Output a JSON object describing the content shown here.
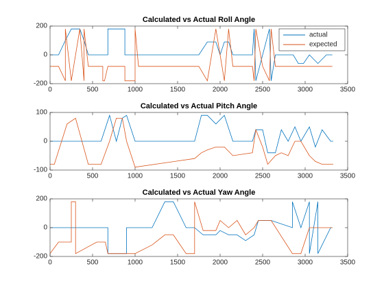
{
  "chart_data": [
    {
      "type": "line",
      "title": "Calculated vs Actual Roll Angle",
      "x": [
        0,
        100,
        180,
        180,
        250,
        350,
        400,
        400,
        450,
        620,
        620,
        640,
        680,
        680,
        880,
        880,
        1000,
        1000,
        1040,
        1750,
        1850,
        1950,
        2000,
        2050,
        2100,
        2150,
        2380,
        2400,
        2420,
        2500,
        2580,
        2600,
        2600,
        2650,
        2800,
        2860,
        2920,
        2980,
        3050,
        3150,
        3250,
        3320
      ],
      "series": [
        {
          "name": "actual",
          "color": "#0072bd",
          "values": [
            0,
            0,
            100,
            100,
            180,
            180,
            100,
            100,
            0,
            0,
            0,
            0,
            0,
            180,
            180,
            0,
            0,
            0,
            0,
            0,
            90,
            90,
            0,
            90,
            90,
            0,
            0,
            180,
            -180,
            0,
            180,
            -180,
            -180,
            0,
            0,
            0,
            -60,
            -60,
            0,
            -60,
            0,
            0
          ]
        },
        {
          "name": "expected",
          "color": "#d95319",
          "values": [
            -80,
            -80,
            -180,
            180,
            -180,
            180,
            -180,
            180,
            -80,
            -80,
            -180,
            -180,
            -80,
            -80,
            -80,
            -180,
            -180,
            180,
            -80,
            -80,
            -180,
            180,
            0,
            -180,
            180,
            -80,
            -80,
            -180,
            180,
            -80,
            -180,
            180,
            180,
            -80,
            -80,
            -80,
            -80,
            -80,
            -80,
            -80,
            -80,
            -80
          ]
        }
      ],
      "xlim": [
        0,
        3500
      ],
      "xticks": [
        0,
        500,
        1000,
        1500,
        2000,
        2500,
        3000,
        3500
      ],
      "ylim": [
        -200,
        200
      ],
      "yticks": [
        -200,
        0,
        200
      ],
      "legend": "upper right"
    },
    {
      "type": "line",
      "title": "Calculated vs Actual Pitch Angle",
      "x": [
        0,
        50,
        200,
        300,
        450,
        600,
        700,
        780,
        850,
        900,
        1000,
        1700,
        1780,
        1850,
        1950,
        2050,
        2150,
        2380,
        2420,
        2500,
        2560,
        2650,
        2720,
        2800,
        2880,
        2950,
        3050,
        3120,
        3200,
        3300,
        3330
      ],
      "series": [
        {
          "name": "actual",
          "color": "#0072bd",
          "values": [
            0,
            0,
            0,
            0,
            0,
            0,
            90,
            0,
            80,
            90,
            0,
            0,
            90,
            90,
            60,
            90,
            0,
            0,
            40,
            40,
            -40,
            -40,
            40,
            0,
            50,
            0,
            50,
            -20,
            40,
            0,
            0
          ]
        },
        {
          "name": "expected",
          "color": "#d95319",
          "values": [
            -80,
            -80,
            60,
            80,
            -80,
            -80,
            0,
            80,
            80,
            0,
            -90,
            -60,
            -40,
            -30,
            -20,
            -20,
            -50,
            -40,
            40,
            -20,
            -80,
            -50,
            -40,
            -50,
            0,
            0,
            -50,
            -70,
            -80,
            -80,
            -80
          ]
        }
      ],
      "xlim": [
        0,
        3500
      ],
      "xticks": [
        0,
        500,
        1000,
        1500,
        2000,
        2500,
        3000,
        3500
      ],
      "ylim": [
        -100,
        100
      ],
      "yticks": [
        -100,
        0,
        100
      ]
    },
    {
      "type": "line",
      "title": "Calculated vs Actual Yaw Angle",
      "x": [
        0,
        100,
        250,
        250,
        300,
        300,
        550,
        650,
        680,
        680,
        900,
        900,
        1000,
        1200,
        1350,
        1450,
        1600,
        1700,
        1700,
        1800,
        1950,
        2000,
        2100,
        2200,
        2300,
        2400,
        2450,
        2600,
        2850,
        2850,
        2950,
        3050,
        3050,
        3150,
        3150,
        3300,
        3320
      ],
      "series": [
        {
          "name": "actual",
          "color": "#0072bd",
          "values": [
            0,
            0,
            0,
            0,
            0,
            0,
            0,
            0,
            0,
            -180,
            -180,
            0,
            0,
            0,
            180,
            180,
            0,
            0,
            0,
            -50,
            -50,
            -20,
            -50,
            -50,
            -90,
            -50,
            50,
            50,
            0,
            180,
            0,
            180,
            -180,
            180,
            -180,
            0,
            0
          ]
        },
        {
          "name": "expected",
          "color": "#d95319",
          "values": [
            -180,
            -100,
            -100,
            180,
            180,
            -180,
            -100,
            -100,
            -180,
            -180,
            -180,
            -180,
            -180,
            -120,
            -50,
            -50,
            -180,
            -180,
            180,
            -20,
            -20,
            50,
            0,
            50,
            -50,
            0,
            50,
            50,
            -180,
            -180,
            -180,
            0,
            0,
            0,
            0,
            0,
            0
          ]
        }
      ],
      "xlim": [
        0,
        3500
      ],
      "xticks": [
        0,
        500,
        1000,
        1500,
        2000,
        2500,
        3000,
        3500
      ],
      "ylim": [
        -200,
        200
      ],
      "yticks": [
        -200,
        0,
        200
      ]
    }
  ]
}
